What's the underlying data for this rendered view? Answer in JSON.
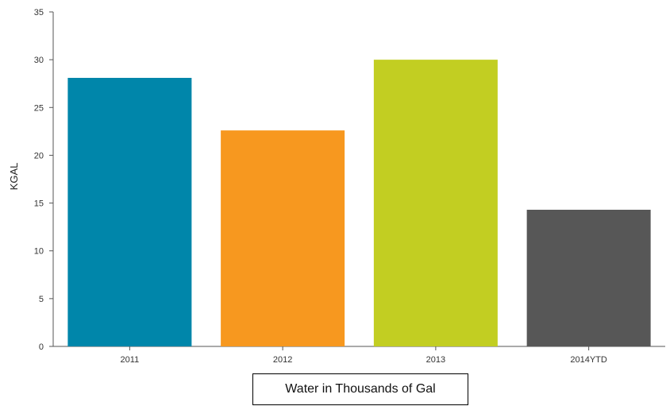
{
  "chart_data": {
    "type": "bar",
    "categories": [
      "2011",
      "2012",
      "2013",
      "2014YTD"
    ],
    "values": [
      28.1,
      22.6,
      30.0,
      14.3
    ],
    "colors": [
      "#0086AA",
      "#F7981F",
      "#C2CE22",
      "#575757"
    ],
    "ylabel": "KGAL",
    "xlabel": "",
    "ylim": [
      0,
      35
    ],
    "yticks": [
      0,
      5,
      10,
      15,
      20,
      25,
      30,
      35
    ],
    "grid": false,
    "legend": "none"
  },
  "caption": "Water in Thousands of Gal"
}
